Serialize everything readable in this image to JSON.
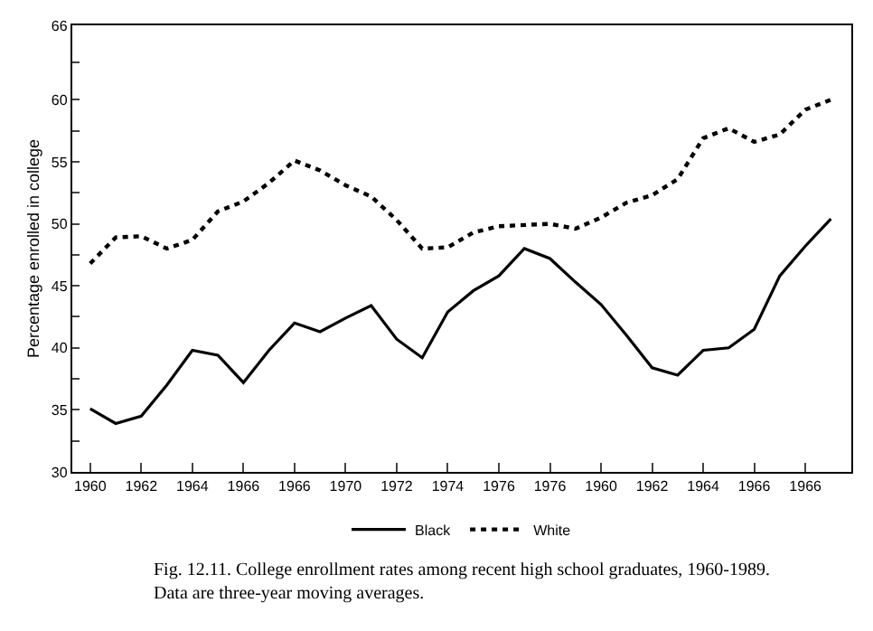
{
  "chart_data": {
    "type": "line",
    "ylabel": "Percentage enrolled in college",
    "annotations": [
      "Fig. 12.11. College enrollment rates among recent high school graduates, 1960-1989. Data are three-year moving averages."
    ],
    "categories": [
      "1960",
      null,
      "1962",
      null,
      "1964",
      null,
      "1966",
      null,
      "1966",
      null,
      "1970",
      null,
      "1972",
      null,
      "1974",
      null,
      "1976",
      null,
      "1976",
      null,
      "1960",
      null,
      "1962",
      null,
      "1964",
      null,
      "1966",
      null,
      "1966",
      null
    ],
    "series": [
      {
        "name": "Black",
        "color": "#000000",
        "line_style": "solid",
        "values": [
          35.1,
          33.9,
          34.5,
          37.0,
          39.8,
          39.4,
          37.2,
          39.8,
          42.0,
          41.3,
          42.4,
          43.4,
          40.7,
          39.2,
          42.9,
          44.6,
          45.8,
          48.0,
          47.2,
          45.3,
          43.5,
          41.0,
          38.4,
          37.8,
          39.8,
          40.0,
          41.5,
          45.8,
          48.2,
          50.4
        ]
      },
      {
        "name": "White",
        "color": "#000000",
        "line_style": "dotted",
        "values": [
          46.8,
          48.9,
          49.0,
          48.0,
          48.7,
          51.0,
          51.8,
          53.3,
          55.1,
          54.3,
          53.1,
          52.2,
          50.3,
          48.0,
          48.1,
          49.3,
          49.8,
          49.9,
          50.0,
          49.6,
          50.5,
          51.7,
          52.3,
          53.6,
          56.9,
          57.7,
          56.6,
          57.2,
          59.2,
          60.0
        ]
      }
    ],
    "ylim": [
      30,
      66
    ],
    "yticks": [
      30,
      {
        "value": 32.5,
        "label": null
      },
      35,
      {
        "value": 37.5,
        "label": null
      },
      40,
      {
        "value": 42.5,
        "label": null
      },
      45,
      {
        "value": 47.5,
        "label": null
      },
      50,
      {
        "value": 52.5,
        "label": null
      },
      55,
      {
        "value": 57.5,
        "label": null
      },
      60,
      {
        "value": 63,
        "label": null
      },
      66
    ],
    "legend": "bottom"
  }
}
